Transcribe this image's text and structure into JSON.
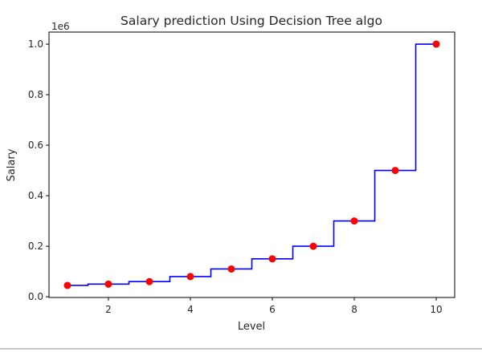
{
  "chart_data": {
    "type": "line",
    "title": "Salary prediction Using Decision Tree algo",
    "xlabel": "Level",
    "ylabel": "Salary",
    "y_offset_label": "1e6",
    "xlim": [
      0.55,
      10.45
    ],
    "ylim": [
      -0.0028,
      1.0478
    ],
    "x_ticks": [
      2,
      4,
      6,
      8,
      10
    ],
    "y_ticks": [
      0.0,
      0.2,
      0.4,
      0.6,
      0.8,
      1.0
    ],
    "y_tick_labels": [
      "0.0",
      "0.2",
      "0.4",
      "0.6",
      "0.8",
      "1.0"
    ],
    "grid": false,
    "series": [
      {
        "kind": "scatter",
        "color": "#ff0000",
        "x": [
          1,
          2,
          3,
          4,
          5,
          6,
          7,
          8,
          9,
          10
        ],
        "y": [
          0.045,
          0.05,
          0.06,
          0.08,
          0.11,
          0.15,
          0.2,
          0.3,
          0.5,
          1.0
        ]
      },
      {
        "kind": "step",
        "color": "#0000ff",
        "x_start": 1.0,
        "x_end": 10.0,
        "breaks": [
          1.5,
          2.5,
          3.5,
          4.5,
          5.5,
          6.5,
          7.5,
          8.5,
          9.5
        ],
        "y": [
          0.045,
          0.05,
          0.06,
          0.08,
          0.11,
          0.15,
          0.2,
          0.3,
          0.5,
          1.0
        ]
      }
    ]
  }
}
